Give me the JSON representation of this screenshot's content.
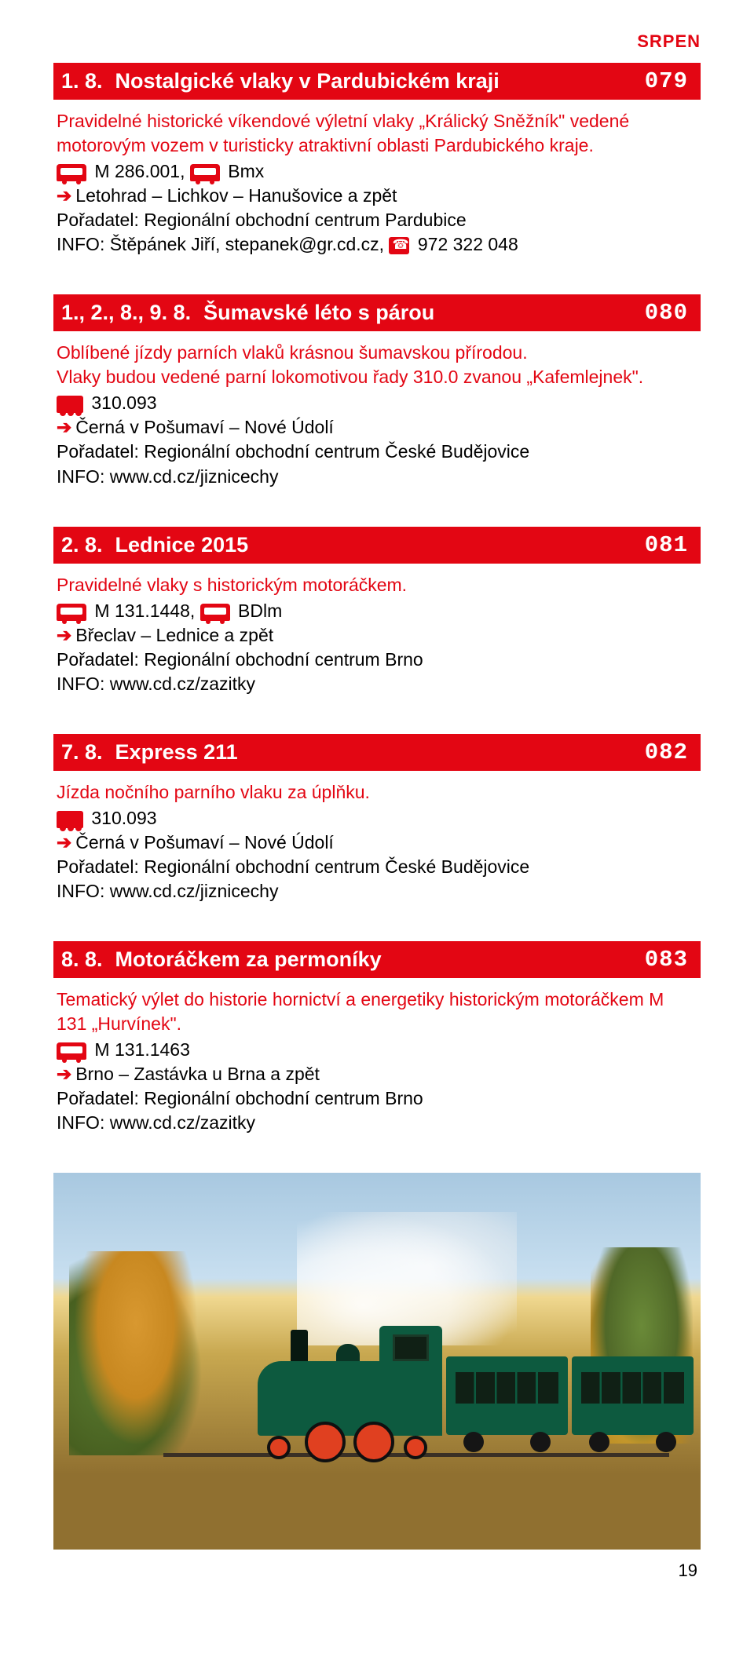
{
  "month_label": "SRPEN",
  "page_number": "19",
  "events": [
    {
      "date": "1. 8.",
      "title": "Nostalgické vlaky v Pardubickém kraji",
      "num": "079",
      "desc": "Pravidelné historické víkendové výletní vlaky „Králický Sněžník\" vedené motorovým vozem v turisticky atraktivní oblasti Pardubického kraje.",
      "vehicle1": "M 286.001,",
      "vehicle2": "Bmx",
      "route": "Letohrad – Lichkov – Hanušovice a zpět",
      "organizer": "Pořadatel: Regionální obchodní centrum Pardubice",
      "info_prefix": "INFO: Štěpánek Jiří, stepanek@gr.cd.cz,",
      "phone": "972 322 048",
      "loco_icon": false
    },
    {
      "date": "1., 2., 8., 9. 8.",
      "title": "Šumavské léto s párou",
      "num": "080",
      "desc": "Oblíbené jízdy parních vlaků krásnou šumavskou přírodou.\nVlaky budou vedené parní lokomotivou řady 310.0 zvanou „Kafemlejnek\".",
      "vehicle1": "310.093",
      "route": "Černá v Pošumaví – Nové Údolí",
      "organizer": "Pořadatel: Regionální obchodní centrum České Budějovice",
      "info": "INFO: www.cd.cz/jiznicechy",
      "loco_icon": true
    },
    {
      "date": "2. 8.",
      "title": "Lednice 2015",
      "num": "081",
      "desc": "Pravidelné vlaky s historickým motoráčkem.",
      "vehicle1": "M 131.1448,",
      "vehicle2": "BDlm",
      "route": "Břeclav – Lednice a zpět",
      "organizer": "Pořadatel: Regionální obchodní centrum Brno",
      "info": "INFO: www.cd.cz/zazitky",
      "loco_icon": false
    },
    {
      "date": "7. 8.",
      "title": "Express 211",
      "num": "082",
      "desc": "Jízda nočního parního vlaku za úplňku.",
      "vehicle1": "310.093",
      "route": "Černá v Pošumaví – Nové Údolí",
      "organizer": "Pořadatel: Regionální obchodní centrum České Budějovice",
      "info": "INFO: www.cd.cz/jiznicechy",
      "loco_icon": true
    },
    {
      "date": "8. 8.",
      "title": "Motoráčkem za permoníky",
      "num": "083",
      "desc": "Tematický výlet do historie hornictví a energetiky historickým motoráčkem M 131 „Hurvínek\".",
      "vehicle1": "M 131.1463",
      "route": "Brno – Zastávka u Brna a zpět",
      "organizer": "Pořadatel: Regionální obchodní centrum Brno",
      "info": "INFO: www.cd.cz/zazitky",
      "loco_icon": false
    }
  ]
}
